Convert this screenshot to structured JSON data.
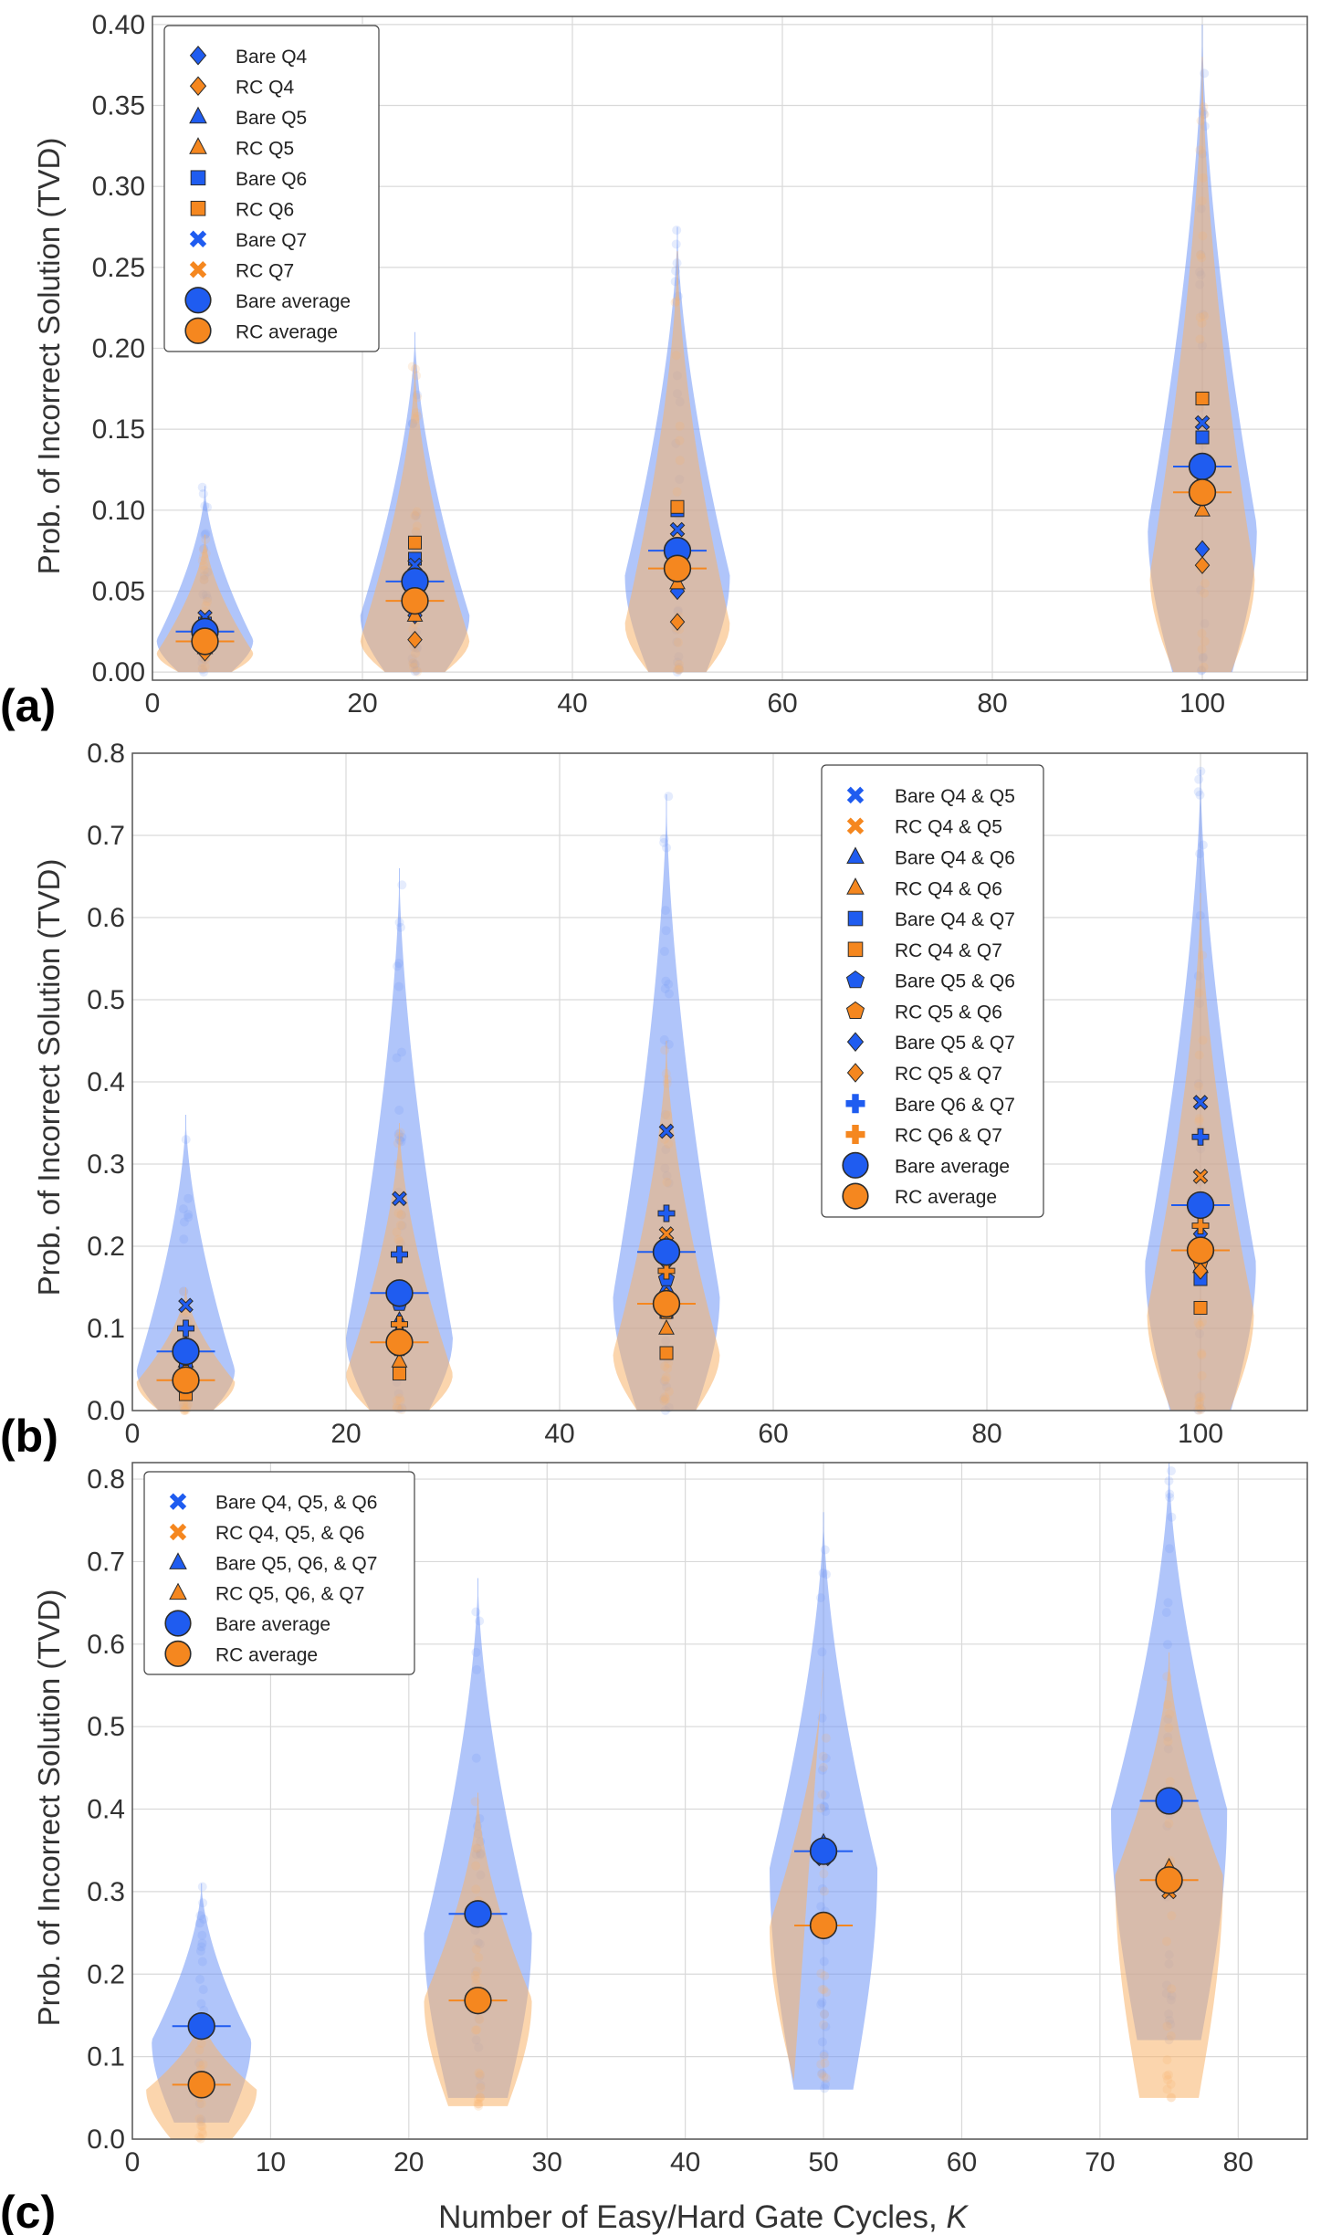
{
  "figure": {
    "ylabel": "Prob. of Incorrect Solution (TVD)",
    "xlabel_text": "Number of Easy/Hard Gate Cycles, ",
    "xlabel_var": "K",
    "colors": {
      "bare": "#1f5cf0",
      "rc": "#f5871f",
      "bare_violin": "#6f95f6",
      "rc_violin": "#f7b26a"
    }
  },
  "chart_data": [
    {
      "type": "violin-scatter",
      "panel": "(a)",
      "xlim": [
        0,
        110
      ],
      "ylim": [
        -0.005,
        0.405
      ],
      "xticks": [
        0,
        20,
        40,
        60,
        80,
        100
      ],
      "yticks": [
        0.0,
        0.05,
        0.1,
        0.15,
        0.2,
        0.25,
        0.3,
        0.35,
        0.4
      ],
      "ytick_labels": [
        "0.00",
        "0.05",
        "0.10",
        "0.15",
        "0.20",
        "0.25",
        "0.30",
        "0.35",
        "0.40"
      ],
      "ylabel": "Prob. of Incorrect Solution (TVD)",
      "legend_position": "upper-left",
      "categories_K": [
        5,
        25,
        50,
        100
      ],
      "violins": {
        "bare": [
          {
            "K": 5,
            "min": 0.0,
            "max": 0.115,
            "peak": 0.02,
            "halfwidth": 4.6
          },
          {
            "K": 25,
            "min": 0.0,
            "max": 0.21,
            "peak": 0.035,
            "halfwidth": 5.2
          },
          {
            "K": 50,
            "min": 0.0,
            "max": 0.275,
            "peak": 0.06,
            "halfwidth": 5.0
          },
          {
            "K": 100,
            "min": 0.0,
            "max": 0.4,
            "peak": 0.09,
            "halfwidth": 5.2
          }
        ],
        "rc": [
          {
            "K": 5,
            "min": 0.0,
            "max": 0.085,
            "peak": 0.012,
            "halfwidth": 4.6
          },
          {
            "K": 25,
            "min": 0.0,
            "max": 0.19,
            "peak": 0.02,
            "halfwidth": 5.2
          },
          {
            "K": 50,
            "min": 0.0,
            "max": 0.26,
            "peak": 0.03,
            "halfwidth": 5.0
          },
          {
            "K": 100,
            "min": 0.0,
            "max": 0.38,
            "peak": 0.06,
            "halfwidth": 5.0
          }
        ]
      },
      "series": [
        {
          "name": "Bare Q4",
          "color": "bare",
          "marker": "diamond",
          "values": [
            0.03,
            0.035,
            0.05,
            0.076
          ]
        },
        {
          "name": "RC Q4",
          "color": "rc",
          "marker": "diamond",
          "values": [
            0.012,
            0.02,
            0.031,
            0.066
          ]
        },
        {
          "name": "Bare Q5",
          "color": "bare",
          "marker": "triangle",
          "values": [
            0.028,
            0.045,
            0.062,
            0.125
          ]
        },
        {
          "name": "RC Q5",
          "color": "rc",
          "marker": "triangle",
          "values": [
            0.015,
            0.035,
            0.055,
            0.1
          ]
        },
        {
          "name": "Bare Q6",
          "color": "bare",
          "marker": "square",
          "values": [
            0.03,
            0.07,
            0.1,
            0.145
          ]
        },
        {
          "name": "RC Q6",
          "color": "rc",
          "marker": "square",
          "values": [
            0.02,
            0.08,
            0.102,
            0.169
          ]
        },
        {
          "name": "Bare Q7",
          "color": "bare",
          "marker": "x",
          "values": [
            0.034,
            0.066,
            0.088,
            0.154
          ]
        },
        {
          "name": "RC Q7",
          "color": "rc",
          "marker": "x",
          "values": [
            0.02,
            0.05,
            0.075,
            0.115
          ]
        },
        {
          "name": "Bare average",
          "color": "bare",
          "marker": "circle",
          "values": [
            0.025,
            0.056,
            0.075,
            0.127
          ]
        },
        {
          "name": "RC average",
          "color": "rc",
          "marker": "circle",
          "values": [
            0.019,
            0.044,
            0.064,
            0.111
          ]
        }
      ]
    },
    {
      "type": "violin-scatter",
      "panel": "(b)",
      "xlim": [
        0,
        110
      ],
      "ylim": [
        0.0,
        0.8
      ],
      "xticks": [
        0,
        20,
        40,
        60,
        80,
        100
      ],
      "yticks": [
        0.0,
        0.1,
        0.2,
        0.3,
        0.4,
        0.5,
        0.6,
        0.7,
        0.8
      ],
      "ytick_labels": [
        "0.0",
        "0.1",
        "0.2",
        "0.3",
        "0.4",
        "0.5",
        "0.6",
        "0.7",
        "0.8"
      ],
      "ylabel": "Prob. of Incorrect Solution (TVD)",
      "legend_position": "upper-right",
      "categories_K": [
        5,
        25,
        50,
        100
      ],
      "violins": {
        "bare": [
          {
            "K": 5,
            "min": 0.0,
            "max": 0.36,
            "peak": 0.05,
            "halfwidth": 4.6
          },
          {
            "K": 25,
            "min": 0.0,
            "max": 0.66,
            "peak": 0.09,
            "halfwidth": 5.0
          },
          {
            "K": 50,
            "min": 0.0,
            "max": 0.75,
            "peak": 0.14,
            "halfwidth": 5.0
          },
          {
            "K": 100,
            "min": 0.0,
            "max": 0.78,
            "peak": 0.18,
            "halfwidth": 5.2
          }
        ],
        "rc": [
          {
            "K": 5,
            "min": 0.0,
            "max": 0.15,
            "peak": 0.035,
            "halfwidth": 4.6
          },
          {
            "K": 25,
            "min": 0.0,
            "max": 0.35,
            "peak": 0.045,
            "halfwidth": 5.0
          },
          {
            "K": 50,
            "min": 0.0,
            "max": 0.45,
            "peak": 0.07,
            "halfwidth": 5.0
          },
          {
            "K": 100,
            "min": 0.0,
            "max": 0.63,
            "peak": 0.12,
            "halfwidth": 5.0
          }
        ]
      },
      "series": [
        {
          "name": "Bare Q4 & Q5",
          "color": "bare",
          "marker": "x",
          "values": [
            0.128,
            0.258,
            0.34,
            0.375
          ]
        },
        {
          "name": "RC Q4 & Q5",
          "color": "rc",
          "marker": "x",
          "values": [
            0.04,
            0.1,
            0.215,
            0.285
          ]
        },
        {
          "name": "Bare Q4 & Q6",
          "color": "bare",
          "marker": "triangle",
          "values": [
            0.06,
            0.11,
            0.15,
            0.205
          ]
        },
        {
          "name": "RC Q4 & Q6",
          "color": "rc",
          "marker": "triangle",
          "values": [
            0.03,
            0.06,
            0.1,
            0.175
          ]
        },
        {
          "name": "Bare Q4 & Q7",
          "color": "bare",
          "marker": "square",
          "values": [
            0.05,
            0.09,
            0.12,
            0.16
          ]
        },
        {
          "name": "RC Q4 & Q7",
          "color": "rc",
          "marker": "square",
          "values": [
            0.02,
            0.045,
            0.07,
            0.125
          ]
        },
        {
          "name": "Bare Q5 & Q6",
          "color": "bare",
          "marker": "pentagon",
          "values": [
            0.07,
            0.13,
            0.16,
            0.2
          ]
        },
        {
          "name": "RC Q5 & Q6",
          "color": "rc",
          "marker": "pentagon",
          "values": [
            0.04,
            0.075,
            0.12,
            0.18
          ]
        },
        {
          "name": "Bare Q5 & Q7",
          "color": "bare",
          "marker": "diamond",
          "values": [
            0.08,
            0.14,
            0.18,
            0.215
          ]
        },
        {
          "name": "RC Q5 & Q7",
          "color": "rc",
          "marker": "diamond",
          "values": [
            0.045,
            0.095,
            0.14,
            0.17
          ]
        },
        {
          "name": "Bare Q6 & Q7",
          "color": "bare",
          "marker": "plus",
          "values": [
            0.1,
            0.19,
            0.24,
            0.333
          ]
        },
        {
          "name": "RC Q6 & Q7",
          "color": "rc",
          "marker": "plus",
          "values": [
            0.045,
            0.105,
            0.17,
            0.225
          ]
        },
        {
          "name": "Bare average",
          "color": "bare",
          "marker": "circle",
          "values": [
            0.072,
            0.143,
            0.193,
            0.25
          ]
        },
        {
          "name": "RC average",
          "color": "rc",
          "marker": "circle",
          "values": [
            0.037,
            0.083,
            0.13,
            0.195
          ]
        }
      ]
    },
    {
      "type": "violin-scatter",
      "panel": "(c)",
      "xlim": [
        0,
        85
      ],
      "ylim": [
        0.0,
        0.82
      ],
      "xticks": [
        0,
        10,
        20,
        30,
        40,
        50,
        60,
        70,
        80
      ],
      "yticks": [
        0.0,
        0.1,
        0.2,
        0.3,
        0.4,
        0.5,
        0.6,
        0.7,
        0.8
      ],
      "ytick_labels": [
        "0.0",
        "0.1",
        "0.2",
        "0.3",
        "0.4",
        "0.5",
        "0.6",
        "0.7",
        "0.8"
      ],
      "ylabel": "Prob. of Incorrect Solution (TVD)",
      "xlabel": "Number of Easy/Hard Gate Cycles, K",
      "legend_position": "upper-left",
      "categories_K": [
        5,
        25,
        50,
        75
      ],
      "violins": {
        "bare": [
          {
            "K": 5,
            "min": 0.02,
            "max": 0.31,
            "peak": 0.12,
            "halfwidth": 3.6
          },
          {
            "K": 25,
            "min": 0.05,
            "max": 0.68,
            "peak": 0.25,
            "halfwidth": 3.9
          },
          {
            "K": 50,
            "min": 0.06,
            "max": 0.76,
            "peak": 0.33,
            "halfwidth": 3.9
          },
          {
            "K": 75,
            "min": 0.12,
            "max": 0.82,
            "peak": 0.4,
            "halfwidth": 4.2
          }
        ],
        "rc": [
          {
            "K": 5,
            "min": 0.0,
            "max": 0.15,
            "peak": 0.06,
            "halfwidth": 4.0
          },
          {
            "K": 25,
            "min": 0.04,
            "max": 0.42,
            "peak": 0.17,
            "halfwidth": 3.9
          },
          {
            "K": 50,
            "min": 0.07,
            "max": 0.58,
            "peak": 0.26,
            "halfwidth": 3.9
          },
          {
            "K": 75,
            "min": 0.05,
            "max": 0.59,
            "peak": 0.32,
            "halfwidth": 3.9
          }
        ]
      },
      "series": [
        {
          "name": "Bare Q4, Q5, & Q6",
          "color": "bare",
          "marker": "x",
          "values": [
            0.14,
            0.275,
            0.34,
            0.41
          ]
        },
        {
          "name": "RC Q4, Q5, & Q6",
          "color": "rc",
          "marker": "x",
          "values": [
            0.065,
            0.17,
            0.26,
            0.3
          ]
        },
        {
          "name": "Bare Q5, Q6, & Q7",
          "color": "bare",
          "marker": "triangle",
          "values": [
            0.135,
            0.27,
            0.36,
            0.41
          ]
        },
        {
          "name": "RC Q5, Q6, & Q7",
          "color": "rc",
          "marker": "triangle",
          "values": [
            0.07,
            0.165,
            0.26,
            0.33
          ]
        },
        {
          "name": "Bare average",
          "color": "bare",
          "marker": "circle",
          "values": [
            0.137,
            0.273,
            0.349,
            0.41
          ]
        },
        {
          "name": "RC average",
          "color": "rc",
          "marker": "circle",
          "values": [
            0.066,
            0.168,
            0.259,
            0.314
          ]
        }
      ]
    }
  ]
}
